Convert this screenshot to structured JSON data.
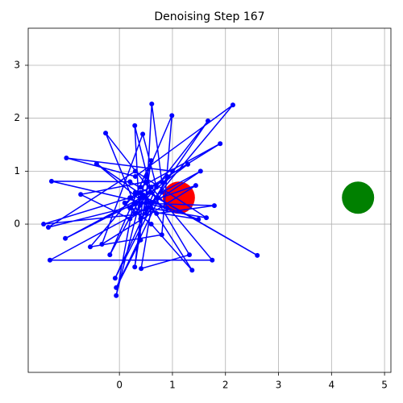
{
  "chart_data": {
    "type": "line",
    "title": "Denoising Step 167",
    "x": [
      0.4,
      0.6,
      2.14,
      0.3,
      -1.0,
      1.0,
      0.5,
      -1.43,
      0.2,
      0.8,
      0.61,
      0.5,
      -1.31,
      1.75,
      0.6,
      0.3,
      1.67,
      0.4,
      -0.26,
      0.7,
      2.6,
      0.2,
      -1.28,
      0.9,
      0.3,
      -0.06,
      0.5,
      0.99,
      0.8,
      -0.55,
      0.4,
      1.9,
      0.1,
      0.6,
      1.37,
      0.5,
      -0.43,
      0.7,
      1.79,
      0.3,
      -1.02,
      0.6,
      0.29,
      0.4,
      -0.06,
      0.8,
      1.53,
      0.2,
      -0.73,
      0.5,
      1.32,
      0.41,
      0.6,
      1.64,
      0.3,
      -1.34,
      0.5,
      1.44,
      -0.33,
      0.44,
      0.7,
      -0.08,
      0.9,
      1.29,
      0.2,
      1.49,
      0.4,
      -0.18,
      0.6,
      0.29,
      0.45
    ],
    "series": [
      {
        "color": "#0000ff",
        "values": [
          0.6,
          0.4,
          2.25,
          0.9,
          1.25,
          1.0,
          0.2,
          0.0,
          0.5,
          0.8,
          2.27,
          0.3,
          -0.68,
          -0.68,
          0.7,
          0.2,
          1.95,
          0.1,
          1.72,
          0.5,
          -0.59,
          0.8,
          0.81,
          0.3,
          0.6,
          -1.35,
          0.9,
          2.05,
          -0.2,
          -0.43,
          0.7,
          1.52,
          0.4,
          0.0,
          -0.87,
          0.5,
          1.14,
          0.2,
          0.35,
          0.4,
          -0.27,
          0.6,
          1.86,
          -0.3,
          -1.2,
          0.6,
          1.0,
          0.1,
          0.56,
          0.8,
          -0.58,
          -0.84,
          0.3,
          0.12,
          1.0,
          -0.06,
          0.4,
          0.73,
          -0.38,
          1.7,
          0.7,
          -1.02,
          0.9,
          1.13,
          0.3,
          0.09,
          0.5,
          -0.58,
          1.2,
          -0.81,
          0.55
        ]
      }
    ],
    "markers": [
      {
        "x": 1.12,
        "y": 0.5,
        "color": "#ff0000"
      },
      {
        "x": 4.5,
        "y": 0.5,
        "color": "#008000"
      }
    ],
    "xlim": [
      -1.72,
      5.12
    ],
    "ylim": [
      -2.8,
      3.7
    ],
    "xticks": [
      0,
      1,
      2,
      3,
      4,
      5
    ],
    "yticks": [
      0,
      1,
      2,
      3
    ],
    "grid": true
  }
}
